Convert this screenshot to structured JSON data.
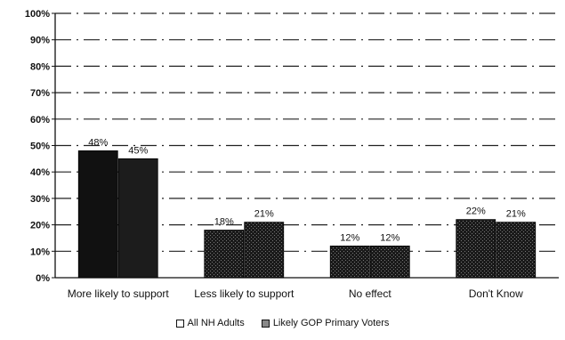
{
  "chart_data": {
    "type": "bar",
    "categories": [
      "More likely to support",
      "Less likely to support",
      "No effect",
      "Don't Know"
    ],
    "series": [
      {
        "name": "All NH Adults",
        "values": [
          48,
          18,
          12,
          22
        ]
      },
      {
        "name": "Likely GOP Primary Voters",
        "values": [
          45,
          21,
          12,
          21
        ]
      }
    ],
    "data_labels": [
      [
        "48%",
        "18%",
        "12%",
        "22%"
      ],
      [
        "45%",
        "21%",
        "12%",
        "21%"
      ]
    ],
    "yticks": [
      "0%",
      "10%",
      "20%",
      "30%",
      "40%",
      "50%",
      "60%",
      "70%",
      "80%",
      "90%",
      "100%"
    ],
    "ylim": [
      0,
      100
    ],
    "grid": true,
    "legend_position": "bottom",
    "colors": {
      "series1": "#111111",
      "series2": "#222222",
      "dither": "#666666"
    }
  }
}
